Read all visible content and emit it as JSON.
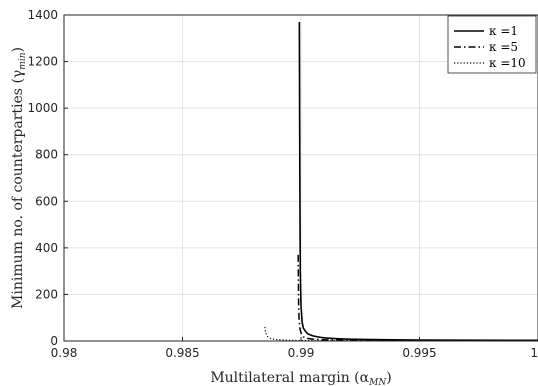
{
  "chart_data": {
    "type": "line",
    "xlabel": "Multilateral margin (α",
    "xlabel_sub": "MN",
    "ylabel": "Minimum no. of counterparties (γ",
    "ylabel_sub": "min",
    "xlim": [
      0.98,
      1.0
    ],
    "ylim": [
      0,
      1400
    ],
    "x_ticks": [
      0.98,
      0.985,
      0.99,
      0.995,
      1.0
    ],
    "x_tick_labels": [
      "0.98",
      "0.985",
      "0.99",
      "0.995",
      "1"
    ],
    "y_ticks": [
      0,
      200,
      400,
      600,
      800,
      1000,
      1200,
      1400
    ],
    "y_tick_labels": [
      "0",
      "200",
      "400",
      "600",
      "800",
      "1000",
      "1200",
      "1400"
    ],
    "grid": true,
    "legend_position": "top-right",
    "series": [
      {
        "name": "κ =1",
        "line_style": "solid",
        "x": [
          0.98993,
          0.98995,
          0.98997,
          0.99,
          0.99005,
          0.9901,
          0.9902,
          0.9903,
          0.9905,
          0.9908,
          0.991,
          0.9915,
          0.992,
          0.993,
          0.995,
          1.0
        ],
        "y": [
          1370,
          700,
          300,
          150,
          80,
          55,
          40,
          30,
          22,
          16,
          13,
          10,
          8,
          6,
          4,
          3
        ]
      },
      {
        "name": "κ =5",
        "line_style": "dashdot",
        "x": [
          0.98988,
          0.98989,
          0.9899,
          0.98992,
          0.98995,
          0.99,
          0.99005,
          0.9901,
          0.9902,
          0.9905,
          0.991,
          0.992,
          0.995,
          1.0
        ],
        "y": [
          370,
          250,
          150,
          90,
          55,
          35,
          25,
          18,
          12,
          8,
          5,
          4,
          3,
          2
        ]
      },
      {
        "name": "κ =10",
        "line_style": "dotted",
        "x": [
          0.98848,
          0.9885,
          0.98855,
          0.9886,
          0.9887,
          0.9888,
          0.989,
          0.9895,
          0.99,
          0.995,
          1.0
        ],
        "y": [
          60,
          40,
          25,
          18,
          12,
          9,
          6,
          3,
          2,
          1,
          1
        ]
      }
    ]
  }
}
